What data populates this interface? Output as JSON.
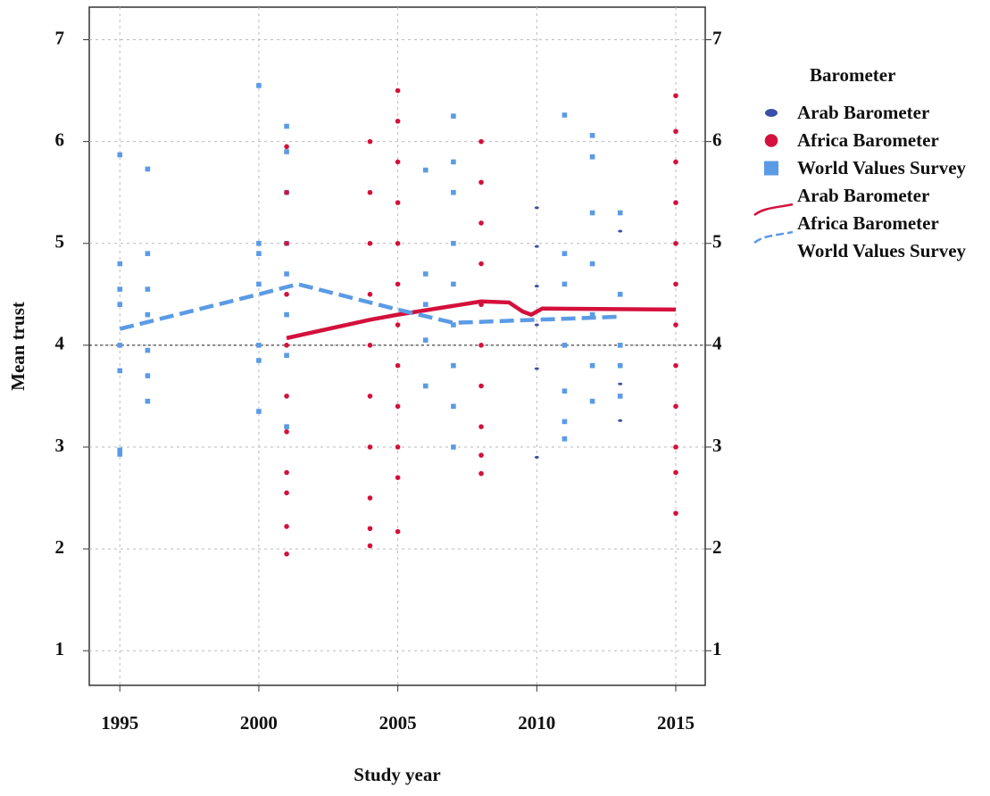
{
  "chart_data": {
    "type": "scatter",
    "xlabel": "Study year",
    "ylabel": "Mean trust",
    "xlim": [
      1993.9,
      2016.06
    ],
    "ylim": [
      0.66,
      7.32
    ],
    "xticks": [
      1995,
      2000,
      2005,
      2010,
      2015
    ],
    "yticks": [
      1,
      2,
      3,
      4,
      5,
      6,
      7
    ],
    "grid": true,
    "hline": 4,
    "legend_title": "Barometer",
    "series": [
      {
        "name": "Arab Barometer",
        "color": "#3a4fa8",
        "marker": "ellipse",
        "x": [
          2010,
          2010,
          2010,
          2010,
          2010,
          2010,
          2013,
          2013,
          2013
        ],
        "y": [
          5.35,
          4.97,
          4.58,
          4.2,
          3.77,
          2.9,
          5.12,
          3.62,
          3.26
        ]
      },
      {
        "name": "Africa Barometer",
        "color": "#d4103c",
        "marker": "circle",
        "x": [
          2001,
          2001,
          2001,
          2001,
          2001,
          2001,
          2001,
          2001,
          2001,
          2001,
          2001,
          2004,
          2004,
          2004,
          2004,
          2004,
          2004,
          2004,
          2004,
          2004,
          2004,
          2005,
          2005,
          2005,
          2005,
          2005,
          2005,
          2005,
          2005,
          2005,
          2005,
          2005,
          2005,
          2008,
          2008,
          2008,
          2008,
          2008,
          2008,
          2008,
          2008,
          2008,
          2008,
          2015,
          2015,
          2015,
          2015,
          2015,
          2015,
          2015,
          2015,
          2015,
          2015,
          2015,
          2015
        ],
        "y": [
          5.95,
          5.5,
          5.0,
          4.5,
          4.0,
          3.5,
          3.15,
          2.75,
          2.55,
          2.22,
          1.95,
          6.0,
          5.5,
          5.0,
          4.5,
          4.0,
          3.5,
          3.0,
          2.5,
          2.2,
          2.03,
          6.5,
          6.2,
          5.8,
          5.4,
          5.0,
          4.6,
          4.2,
          3.8,
          3.4,
          3.0,
          2.7,
          2.17,
          6.0,
          5.6,
          5.2,
          4.8,
          4.4,
          4.0,
          3.6,
          3.2,
          2.92,
          2.74,
          6.45,
          6.1,
          5.8,
          5.4,
          5.0,
          4.6,
          4.2,
          3.8,
          3.4,
          3.0,
          2.75,
          2.35
        ]
      },
      {
        "name": "World Values Survey",
        "color": "#5b9be5",
        "marker": "square",
        "x": [
          1995,
          1995,
          1995,
          1995,
          1995,
          1995,
          1995,
          1995,
          1996,
          1996,
          1996,
          1996,
          1996,
          1996,
          1996,
          2000,
          2000,
          2000,
          2000,
          2000,
          2000,
          2000,
          2001,
          2001,
          2001,
          2001,
          2001,
          2001,
          2001,
          2001,
          2006,
          2006,
          2006,
          2006,
          2006,
          2007,
          2007,
          2007,
          2007,
          2007,
          2007,
          2007,
          2007,
          2007,
          2011,
          2011,
          2011,
          2011,
          2011,
          2011,
          2011,
          2012,
          2012,
          2012,
          2012,
          2012,
          2012,
          2012,
          2013,
          2013,
          2013,
          2013,
          2013
        ],
        "y": [
          5.87,
          4.8,
          4.55,
          4.4,
          4.0,
          3.75,
          2.97,
          2.93,
          5.73,
          4.9,
          4.55,
          4.3,
          3.95,
          3.7,
          3.45,
          6.55,
          5.0,
          4.9,
          4.6,
          4.0,
          3.85,
          3.35,
          6.15,
          5.9,
          5.5,
          5.0,
          4.7,
          4.3,
          3.9,
          3.2,
          5.72,
          4.7,
          4.4,
          4.05,
          3.6,
          6.25,
          5.8,
          5.5,
          5.0,
          4.6,
          4.2,
          3.8,
          3.4,
          3.0,
          6.26,
          4.9,
          4.6,
          4.0,
          3.55,
          3.25,
          3.08,
          6.06,
          5.85,
          5.3,
          4.8,
          4.3,
          3.8,
          3.45,
          5.3,
          4.5,
          4.0,
          3.8,
          3.5
        ]
      }
    ],
    "lines": [
      {
        "name": "Arab Barometer",
        "color": "#3a4fa8",
        "dash": false,
        "x": [],
        "y": []
      },
      {
        "name": "Africa Barometer",
        "color": "#d4103c",
        "dash": false,
        "x": [
          2001,
          2004,
          2005,
          2008,
          2009,
          2009.5,
          2009.8,
          2010.2,
          2015
        ],
        "y": [
          4.07,
          4.25,
          4.3,
          4.43,
          4.42,
          4.33,
          4.3,
          4.36,
          4.35
        ]
      },
      {
        "name": "World Values Survey",
        "color": "#5b9be5",
        "dash": true,
        "x": [
          1995,
          2000,
          2001.4,
          2005,
          2007,
          2010,
          2013
        ],
        "y": [
          4.16,
          4.5,
          4.6,
          4.35,
          4.22,
          4.25,
          4.28
        ]
      }
    ]
  }
}
